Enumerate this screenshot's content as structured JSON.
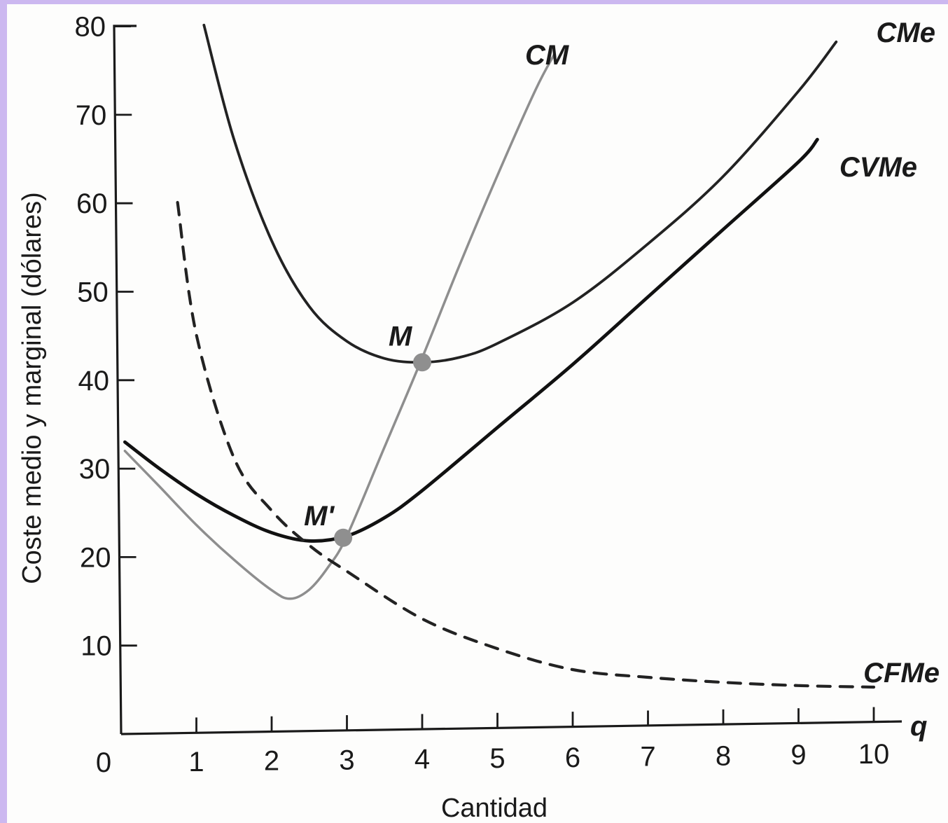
{
  "chart_data": {
    "type": "line",
    "xlabel": "Cantidad",
    "ylabel": "Coste medio y marginal (dólares)",
    "x_end_label": "q",
    "xlim": [
      0,
      10.3
    ],
    "ylim": [
      0,
      80
    ],
    "x_ticks": [
      {
        "value": 0,
        "label": "0"
      },
      {
        "value": 1,
        "label": "1"
      },
      {
        "value": 2,
        "label": "2"
      },
      {
        "value": 3,
        "label": "3"
      },
      {
        "value": 4,
        "label": "4"
      },
      {
        "value": 5,
        "label": "5"
      },
      {
        "value": 6,
        "label": "6"
      },
      {
        "value": 7,
        "label": "7"
      },
      {
        "value": 8,
        "label": "8"
      },
      {
        "value": 9,
        "label": "9"
      },
      {
        "value": 10,
        "label": "10"
      }
    ],
    "y_ticks": [
      {
        "value": 10,
        "label": "10"
      },
      {
        "value": 20,
        "label": "20"
      },
      {
        "value": 30,
        "label": "30"
      },
      {
        "value": 40,
        "label": "40"
      },
      {
        "value": 50,
        "label": "50"
      },
      {
        "value": 60,
        "label": "60"
      },
      {
        "value": 70,
        "label": "70"
      },
      {
        "value": 80,
        "label": "80"
      }
    ],
    "grid": false,
    "series": [
      {
        "name": "CM",
        "color": "#8e8e8e",
        "style": "solid",
        "x": [
          0.05,
          0.5,
          1.0,
          1.5,
          2.0,
          2.25,
          2.5,
          2.75,
          3.0,
          3.5,
          4.0,
          4.5,
          5.0,
          5.5,
          5.75
        ],
        "y": [
          32,
          28,
          23.5,
          19.5,
          16,
          15,
          16,
          18.5,
          22,
          32,
          42,
          52.5,
          62.5,
          72,
          76
        ]
      },
      {
        "name": "CMe",
        "color": "#222222",
        "style": "solid",
        "x": [
          1.1,
          1.5,
          2.0,
          2.5,
          3.0,
          3.5,
          4.0,
          4.5,
          5.0,
          6.0,
          7.0,
          8.0,
          9.0,
          9.5
        ],
        "y": [
          80,
          67,
          55.5,
          48,
          44,
          42,
          41.5,
          42,
          43.5,
          48,
          54.5,
          62,
          71.5,
          77
        ]
      },
      {
        "name": "CVMe",
        "color": "#111111",
        "style": "solid",
        "x": [
          0.05,
          0.5,
          1.0,
          1.5,
          2.0,
          2.5,
          3.0,
          3.5,
          4.0,
          5.0,
          6.0,
          7.0,
          8.0,
          9.0,
          9.25
        ],
        "y": [
          33,
          30,
          27,
          24.5,
          22.5,
          21.5,
          22,
          24,
          27,
          34,
          41,
          48.5,
          56,
          63.5,
          66
        ]
      },
      {
        "name": "CFMe",
        "color": "#222222",
        "style": "dashed",
        "x": [
          0.75,
          1.0,
          1.5,
          2.0,
          2.5,
          3.0,
          4.0,
          5.0,
          6.0,
          7.0,
          8.0,
          9.0,
          10.0
        ],
        "y": [
          60,
          45,
          31,
          25,
          21,
          18,
          12.5,
          9,
          6.5,
          5.5,
          4.8,
          4.3,
          4
        ]
      }
    ],
    "points": [
      {
        "name": "M",
        "x": 4.0,
        "y": 41.5
      },
      {
        "name": "M'",
        "x": 2.95,
        "y": 21.8
      }
    ]
  }
}
